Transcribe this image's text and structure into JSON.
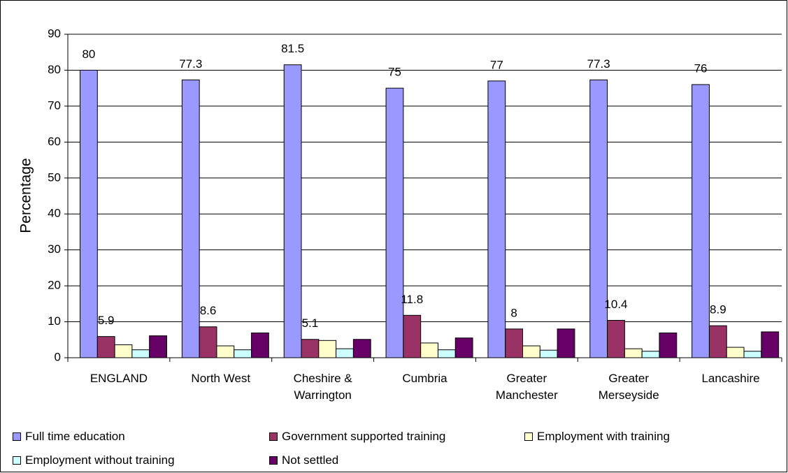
{
  "chart_data": {
    "type": "bar",
    "y_label": "Percentage",
    "categories": [
      "ENGLAND",
      "North West",
      "Cheshire & Warrington",
      "Cumbria",
      "Greater Manchester",
      "Greater Merseyside",
      "Lancashire"
    ],
    "series": [
      {
        "name": "Full time education",
        "color": "#9999ff",
        "values": [
          80,
          77.3,
          81.5,
          75,
          77,
          77.3,
          76
        ],
        "show_labels": true
      },
      {
        "name": "Government supported training",
        "color": "#993366",
        "values": [
          5.9,
          8.6,
          5.1,
          11.8,
          8,
          10.4,
          8.9
        ],
        "show_labels": true
      },
      {
        "name": "Employment with training",
        "color": "#ffffcc",
        "values": [
          3.6,
          3.3,
          4.8,
          4.1,
          3.3,
          2.5,
          2.9
        ],
        "show_labels": false
      },
      {
        "name": "Employment without training",
        "color": "#ccffff",
        "values": [
          2.2,
          2.2,
          2.5,
          2.2,
          2.1,
          1.8,
          1.8
        ],
        "show_labels": false
      },
      {
        "name": "Not settled",
        "color": "#660066",
        "values": [
          6.1,
          6.9,
          5.1,
          5.5,
          8.0,
          6.9,
          7.2
        ],
        "show_labels": false
      }
    ],
    "ylim": [
      0,
      90
    ],
    "yticks": [
      0,
      10,
      20,
      30,
      40,
      50,
      60,
      70,
      80,
      90
    ],
    "grid": true
  }
}
